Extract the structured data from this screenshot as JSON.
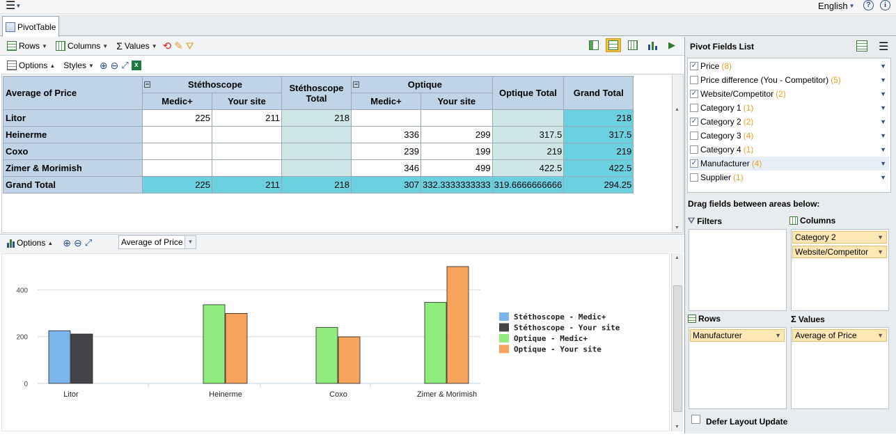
{
  "topbar": {
    "language": "English"
  },
  "tab": {
    "label": "PivotTable"
  },
  "toolbar": {
    "rows": "Rows",
    "columns": "Columns",
    "values": "Values"
  },
  "subtoolbar": {
    "options": "Options",
    "styles": "Styles"
  },
  "pivot": {
    "corner": "Average of Price",
    "group1": "Stéthoscope",
    "group2": "Optique",
    "sub_medic": "Medic+",
    "sub_your": "Your site",
    "steth_total": "Stéthoscope Total",
    "optique_total": "Optique Total",
    "grand_total": "Grand Total",
    "rows": [
      {
        "label": "Litor",
        "c1": "225",
        "c2": "211",
        "c3": "218",
        "c4": "",
        "c5": "",
        "c6": "",
        "c7": "218"
      },
      {
        "label": "Heinerme",
        "c1": "",
        "c2": "",
        "c3": "",
        "c4": "336",
        "c5": "299",
        "c6": "317.5",
        "c7": "317.5"
      },
      {
        "label": "Coxo",
        "c1": "",
        "c2": "",
        "c3": "",
        "c4": "239",
        "c5": "199",
        "c6": "219",
        "c7": "219"
      },
      {
        "label": "Zimer & Morimish",
        "c1": "",
        "c2": "",
        "c3": "",
        "c4": "346",
        "c5": "499",
        "c6": "422.5",
        "c7": "422.5"
      }
    ],
    "grand": {
      "label": "Grand Total",
      "c1": "225",
      "c2": "211",
      "c3": "218",
      "c4": "307",
      "c5": "332.3333333333",
      "c6": "319.6666666666",
      "c7": "294.25"
    }
  },
  "chartbar": {
    "options": "Options",
    "measure": "Average of Price"
  },
  "chart_data": {
    "type": "bar",
    "categories": [
      "Litor",
      "Heinerme",
      "Coxo",
      "Zimer & Morimish"
    ],
    "series": [
      {
        "name": "Stéthoscope - Medic+",
        "color": "#7cb5ec",
        "values": [
          225,
          null,
          null,
          null
        ]
      },
      {
        "name": "Stéthoscope - Your site",
        "color": "#434348",
        "values": [
          211,
          null,
          null,
          null
        ]
      },
      {
        "name": "Optique - Medic+",
        "color": "#90ed7d",
        "values": [
          null,
          336,
          239,
          346
        ]
      },
      {
        "name": "Optique - Your site",
        "color": "#f7a35c",
        "values": [
          null,
          299,
          199,
          499
        ]
      }
    ],
    "yticks": [
      "0",
      "200",
      "400"
    ],
    "ylim": [
      0,
      520
    ]
  },
  "fields": {
    "title": "Pivot Fields List",
    "items": [
      {
        "name": "Price",
        "count": "(8)",
        "checked": true
      },
      {
        "name": "Price difference (You - Competitor)",
        "count": "(5)",
        "checked": false
      },
      {
        "name": "Website/Competitor",
        "count": "(2)",
        "checked": true
      },
      {
        "name": "Category 1",
        "count": "(1)",
        "checked": false
      },
      {
        "name": "Category 2",
        "count": "(2)",
        "checked": true
      },
      {
        "name": "Category 3",
        "count": "(4)",
        "checked": false
      },
      {
        "name": "Category 4",
        "count": "(1)",
        "checked": false
      },
      {
        "name": "Manufacturer",
        "count": "(4)",
        "checked": true
      },
      {
        "name": "Supplier",
        "count": "(1)",
        "checked": false
      }
    ],
    "drag_hint": "Drag fields between areas below:",
    "filters": "Filters",
    "columns": "Columns",
    "rows": "Rows",
    "values": "Values",
    "col_chip1": "Category 2",
    "col_chip2": "Website/Competitor",
    "row_chip": "Manufacturer",
    "val_chip": "Average of Price",
    "defer": "Defer Layout Update"
  }
}
